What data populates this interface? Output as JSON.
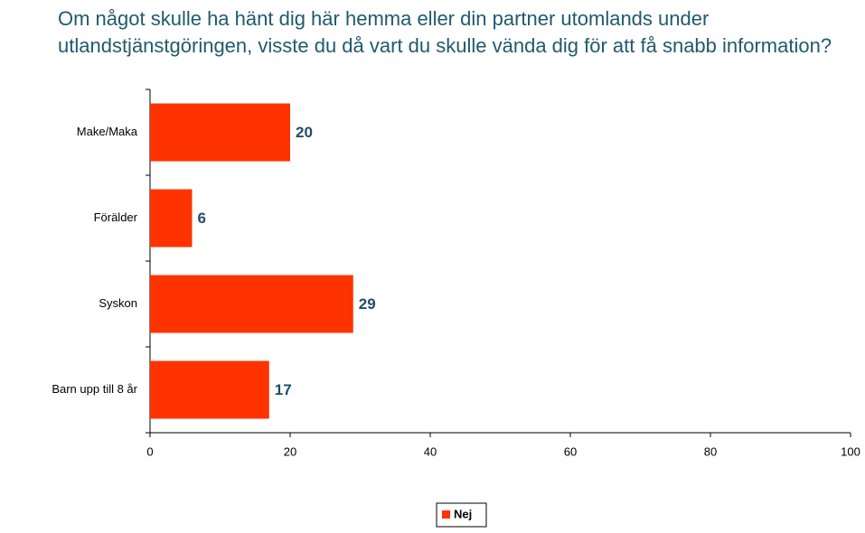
{
  "chart_data": {
    "type": "bar",
    "orientation": "horizontal",
    "title": "Om något skulle ha hänt dig här hemma eller din partner utomlands under utlandstjänstgöringen, visste du då vart du skulle vända dig för att få snabb information?",
    "categories": [
      "Make/Maka",
      "Förälder",
      "Syskon",
      "Barn upp till 8 år"
    ],
    "series": [
      {
        "name": "Nej",
        "color": "#ff3300",
        "values": [
          20,
          6,
          29,
          17
        ]
      }
    ],
    "xlim": [
      0,
      100
    ],
    "xticks": [
      0,
      20,
      40,
      60,
      80,
      100
    ],
    "legend": "bottom"
  }
}
